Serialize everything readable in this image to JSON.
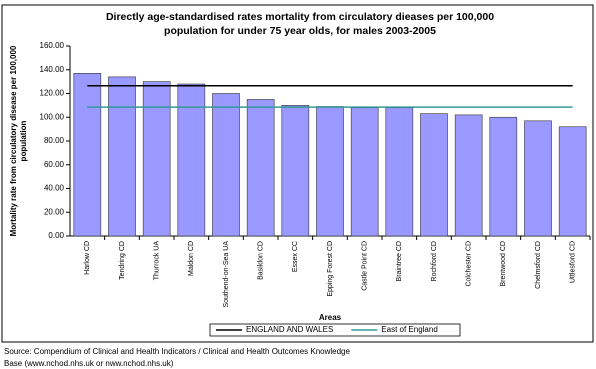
{
  "chart_data": {
    "type": "bar",
    "title_lines": [
      "Directly age-standardised rates mortality from circulatory dieases per 100,000",
      "population for under 75 year olds, for males 2003-2005"
    ],
    "y_label_lines": [
      "Mortality rate from circulatory disease per 100,000",
      "population"
    ],
    "x_label": "Areas",
    "categories": [
      "Harlow CD",
      "Tendring CD",
      "Thurrock UA",
      "Maldon CD",
      "Southend-on-Sea UA",
      "Basildon CD",
      "Essex CC",
      "Epping Forest CD",
      "Castle Point CD",
      "Braintree CD",
      "Rochford CD",
      "Colchester CD",
      "Brentwood CD",
      "Chelmsford CD",
      "Uttlesford CD"
    ],
    "values": [
      137,
      134,
      130,
      128,
      120,
      115,
      110,
      109,
      108,
      108,
      103,
      102,
      100,
      97,
      92
    ],
    "color": "#9999ff",
    "reference_lines": [
      {
        "name": "ENGLAND AND WALES",
        "color": "#000000",
        "value": 126.5
      },
      {
        "name": "East of England",
        "color": "#339999",
        "value": 108.5
      }
    ],
    "ylim": [
      0,
      160
    ],
    "yticks": [
      {
        "value": 0,
        "label": "0.00"
      },
      {
        "value": 20,
        "label": "20.00"
      },
      {
        "value": 40,
        "label": "40.00"
      },
      {
        "value": 60,
        "label": "60.00"
      },
      {
        "value": 80,
        "label": "80.00"
      },
      {
        "value": 100,
        "label": "100.00"
      },
      {
        "value": 120,
        "label": "120.00"
      },
      {
        "value": 140,
        "label": "140.00"
      },
      {
        "value": 160,
        "label": "160.00"
      }
    ],
    "source_lines": [
      "Source: Compendium of Clinical and Health Indicators / Clinical and Health Outcomes Knowledge",
      "Base (www.nchod.nhs.uk or nww.nchod.nhs.uk)"
    ]
  }
}
